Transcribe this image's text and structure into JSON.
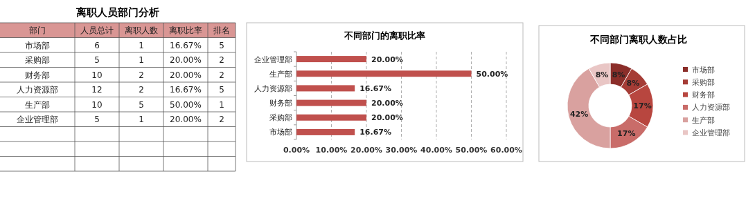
{
  "chart_data": [
    {
      "type": "other",
      "title": "离职人员部门分析",
      "xlabel": "部门",
      "categories": [
        "市场部",
        "采购部",
        "财务部",
        "人力资源部",
        "生产部",
        "企业管理部"
      ],
      "data_labels": true,
      "series": [
        {
          "name": "人员总计",
          "values": [
            6,
            5,
            10,
            12,
            10,
            5
          ]
        },
        {
          "name": "离职人数",
          "values": [
            1,
            1,
            2,
            2,
            5,
            1
          ]
        },
        {
          "name": "离职比率",
          "values": [
            16.67,
            20,
            20,
            16.67,
            50,
            20
          ],
          "value_labels": [
            "16.67%",
            "20.00%",
            "20.00%",
            "16.67%",
            "50.00%",
            "20.00%"
          ]
        },
        {
          "name": "排名",
          "values": [
            5,
            2,
            2,
            5,
            1,
            2
          ]
        }
      ]
    },
    {
      "type": "bar",
      "orientation": "horizontal",
      "title": "不同部门的离职比率",
      "categories": [
        "企业管理部",
        "生产部",
        "人力资源部",
        "财务部",
        "采购部",
        "市场部"
      ],
      "values": [
        20,
        50,
        16.67,
        20,
        20,
        16.67
      ],
      "value_labels": [
        "20.00%",
        "50.00%",
        "16.67%",
        "20.00%",
        "20.00%",
        "16.67%"
      ],
      "color": "#c0504d",
      "xlim": [
        0,
        60
      ],
      "xticks": [
        {
          "value": 0,
          "label": "0.00%"
        },
        {
          "value": 10,
          "label": "10.00%"
        },
        {
          "value": 20,
          "label": "20.00%"
        },
        {
          "value": 30,
          "label": "30.00%"
        },
        {
          "value": 40,
          "label": "40.00%"
        },
        {
          "value": 50,
          "label": "50.00%"
        },
        {
          "value": 60,
          "label": "60.00%"
        }
      ],
      "grid": "x"
    },
    {
      "type": "donut",
      "title": "不同部门离职人数占比",
      "categories": [
        "市场部",
        "采购部",
        "财务部",
        "人力资源部",
        "生产部",
        "企业管理部"
      ],
      "values": [
        8.33,
        8.33,
        16.67,
        16.67,
        41.67,
        8.33
      ],
      "value_labels": [
        "8%",
        "8%",
        "17%",
        "17%",
        "42%",
        "8%"
      ],
      "colors": [
        "#8b2e2a",
        "#a53c36",
        "#b8463f",
        "#c96c69",
        "#d9a19f",
        "#e9c6c5"
      ],
      "legend": "right"
    }
  ]
}
